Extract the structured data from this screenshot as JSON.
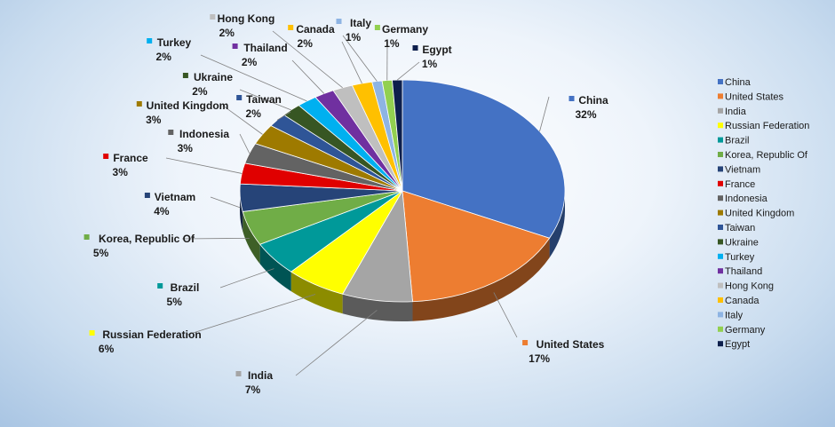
{
  "chart_data": {
    "type": "pie",
    "style": "3d",
    "title": "",
    "legend_position": "right",
    "slices": [
      {
        "label": "China",
        "value": 32,
        "pct_text": "32%",
        "color": "#4472C4"
      },
      {
        "label": "United States",
        "value": 17,
        "pct_text": "17%",
        "color": "#ED7D31"
      },
      {
        "label": "India",
        "value": 7,
        "pct_text": "7%",
        "color": "#A5A5A5"
      },
      {
        "label": "Russian Federation",
        "value": 6,
        "pct_text": "6%",
        "color": "#FFFF00"
      },
      {
        "label": "Brazil",
        "value": 5,
        "pct_text": "5%",
        "color": "#009999"
      },
      {
        "label": "Korea, Republic Of",
        "value": 5,
        "pct_text": "5%",
        "color": "#70AD47"
      },
      {
        "label": "Vietnam",
        "value": 4,
        "pct_text": "4%",
        "color": "#264478"
      },
      {
        "label": "France",
        "value": 3,
        "pct_text": "3%",
        "color": "#E00000"
      },
      {
        "label": "Indonesia",
        "value": 3,
        "pct_text": "3%",
        "color": "#636363"
      },
      {
        "label": "United Kingdom",
        "value": 3,
        "pct_text": "3%",
        "color": "#9E7A00"
      },
      {
        "label": "Taiwan",
        "value": 2,
        "pct_text": "2%",
        "color": "#2F5597"
      },
      {
        "label": "Ukraine",
        "value": 2,
        "pct_text": "2%",
        "color": "#375623"
      },
      {
        "label": "Turkey",
        "value": 2,
        "pct_text": "2%",
        "color": "#00B0F0"
      },
      {
        "label": "Thailand",
        "value": 2,
        "pct_text": "2%",
        "color": "#7030A0"
      },
      {
        "label": "Hong Kong",
        "value": 2,
        "pct_text": "2%",
        "color": "#BFBFBF"
      },
      {
        "label": "Canada",
        "value": 2,
        "pct_text": "2%",
        "color": "#FFC000"
      },
      {
        "label": "Italy",
        "value": 1,
        "pct_text": "1%",
        "color": "#8EB4E3"
      },
      {
        "label": "Germany",
        "value": 1,
        "pct_text": "1%",
        "color": "#92D050"
      },
      {
        "label": "Egypt",
        "value": 1,
        "pct_text": "1%",
        "color": "#0D1F4C"
      }
    ]
  }
}
